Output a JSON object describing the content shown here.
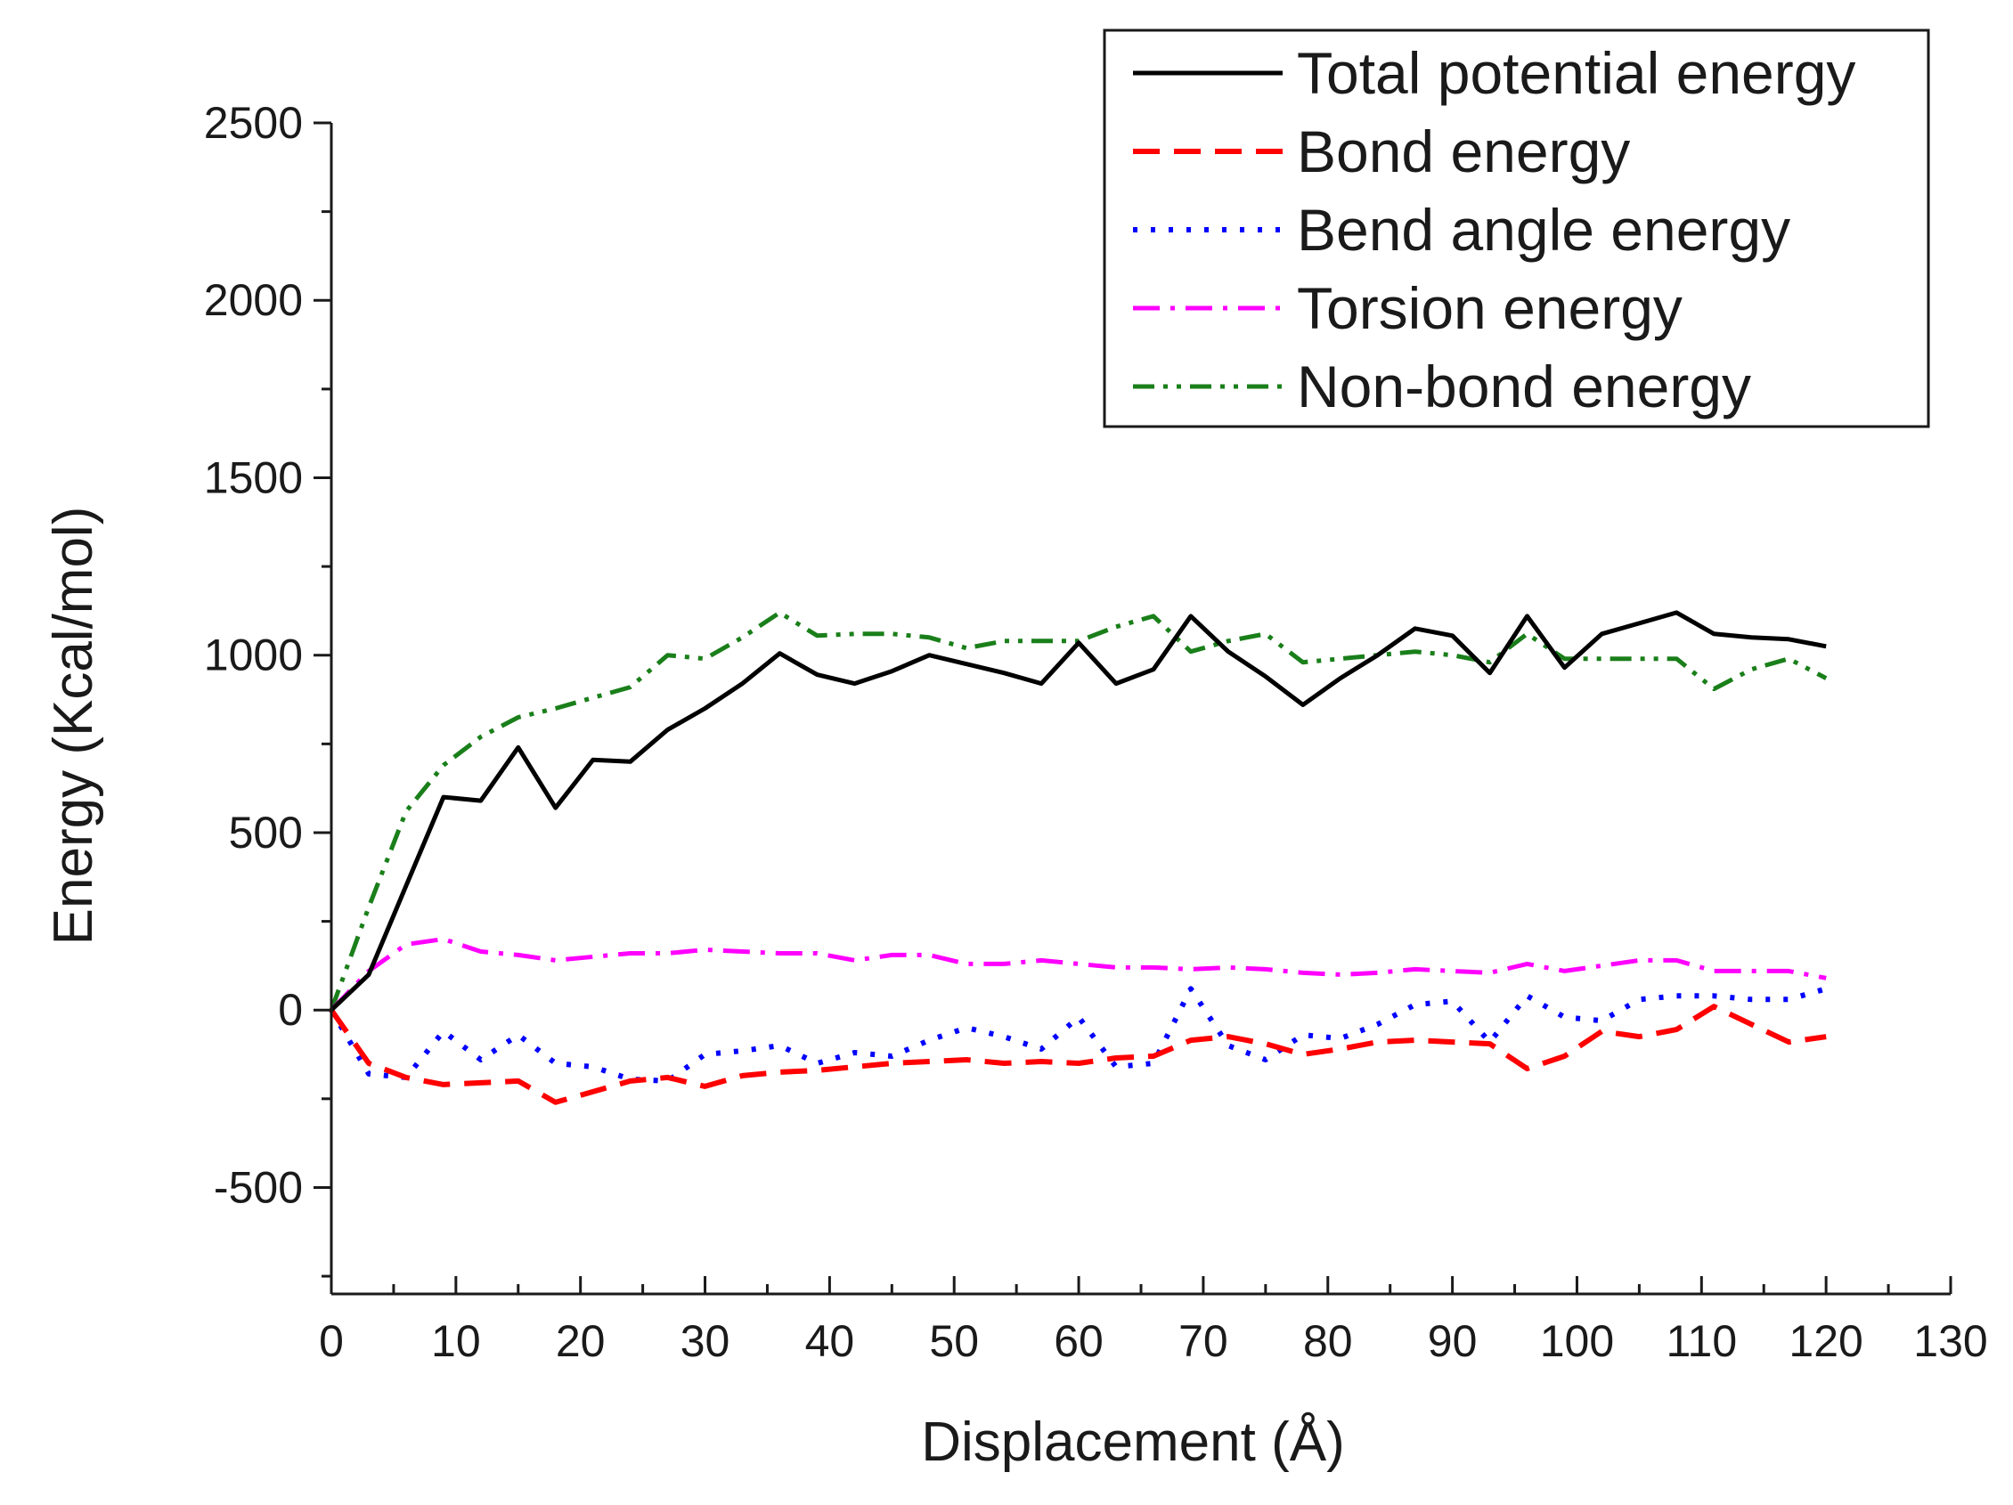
{
  "chart_data": {
    "type": "line",
    "title": "",
    "xlabel": "Displacement (Å)",
    "ylabel": "Energy (Kcal/mol)",
    "xlim": [
      0,
      130
    ],
    "ylim": [
      -800,
      2500
    ],
    "x_ticks": [
      0,
      10,
      20,
      30,
      40,
      50,
      60,
      70,
      80,
      90,
      100,
      110,
      120,
      130
    ],
    "y_ticks": [
      -500,
      0,
      500,
      1000,
      1500,
      2000,
      2500
    ],
    "x_tick_labels": [
      "0",
      "10",
      "20",
      "30",
      "40",
      "50",
      "60",
      "70",
      "80",
      "90",
      "100",
      "110",
      "120",
      "130"
    ],
    "y_tick_labels": [
      "-500",
      "0",
      "500",
      "1000",
      "1500",
      "2000",
      "2500"
    ],
    "legend_position": "top-right",
    "series": [
      {
        "name": "Total potential energy",
        "color": "#000000",
        "dash": "solid",
        "x": [
          0,
          3,
          6,
          9,
          12,
          15,
          18,
          21,
          24,
          27,
          30,
          33,
          36,
          39,
          42,
          45,
          48,
          51,
          54,
          57,
          60,
          63,
          66,
          69,
          72,
          75,
          78,
          81,
          84,
          87,
          90,
          93,
          96,
          99,
          102,
          105,
          108,
          111,
          114,
          117,
          120
        ],
        "values": [
          0,
          100,
          350,
          600,
          590,
          740,
          570,
          705,
          700,
          790,
          850,
          920,
          1005,
          945,
          920,
          955,
          1000,
          975,
          950,
          920,
          1035,
          920,
          960,
          1110,
          1010,
          940,
          860,
          935,
          1000,
          1075,
          1055,
          950,
          1110,
          965,
          1060,
          1090,
          1120,
          1060,
          1050,
          1045,
          1025
        ]
      },
      {
        "name": "Bond energy",
        "color": "#ff0000",
        "dash": "dashed",
        "x": [
          0,
          3,
          6,
          9,
          12,
          15,
          18,
          21,
          24,
          27,
          30,
          33,
          36,
          39,
          42,
          45,
          48,
          51,
          54,
          57,
          60,
          63,
          66,
          69,
          72,
          75,
          78,
          81,
          84,
          87,
          90,
          93,
          96,
          99,
          102,
          105,
          108,
          111,
          114,
          117,
          120
        ],
        "values": [
          0,
          -150,
          -190,
          -210,
          -205,
          -200,
          -260,
          -230,
          -200,
          -190,
          -215,
          -185,
          -175,
          -170,
          -160,
          -150,
          -145,
          -140,
          -150,
          -145,
          -150,
          -135,
          -130,
          -85,
          -75,
          -95,
          -125,
          -110,
          -90,
          -85,
          -90,
          -95,
          -165,
          -130,
          -60,
          -75,
          -55,
          10,
          -40,
          -90,
          -75
        ]
      },
      {
        "name": "Bend angle energy",
        "color": "#0000ff",
        "dash": "dotted",
        "x": [
          0,
          3,
          6,
          9,
          12,
          15,
          18,
          21,
          24,
          27,
          30,
          33,
          36,
          39,
          42,
          45,
          48,
          51,
          54,
          57,
          60,
          63,
          66,
          69,
          72,
          75,
          78,
          81,
          84,
          87,
          90,
          93,
          96,
          99,
          102,
          105,
          108,
          111,
          114,
          117,
          120
        ],
        "values": [
          0,
          -180,
          -190,
          -60,
          -140,
          -70,
          -150,
          -160,
          -195,
          -200,
          -125,
          -115,
          -100,
          -150,
          -120,
          -130,
          -85,
          -50,
          -75,
          -110,
          -20,
          -160,
          -150,
          60,
          -100,
          -140,
          -70,
          -80,
          -40,
          15,
          25,
          -90,
          40,
          -20,
          -30,
          30,
          40,
          40,
          30,
          30,
          60
        ]
      },
      {
        "name": "Torsion energy",
        "color": "#ff00ff",
        "dash": "dashdot",
        "x": [
          0,
          3,
          6,
          9,
          12,
          15,
          18,
          21,
          24,
          27,
          30,
          33,
          36,
          39,
          42,
          45,
          48,
          51,
          54,
          57,
          60,
          63,
          66,
          69,
          72,
          75,
          78,
          81,
          84,
          87,
          90,
          93,
          96,
          99,
          102,
          105,
          108,
          111,
          114,
          117,
          120
        ],
        "values": [
          0,
          110,
          185,
          200,
          165,
          155,
          140,
          150,
          160,
          160,
          170,
          165,
          160,
          160,
          140,
          155,
          155,
          130,
          130,
          140,
          130,
          120,
          120,
          115,
          120,
          115,
          105,
          100,
          105,
          115,
          110,
          105,
          130,
          110,
          125,
          140,
          140,
          110,
          110,
          110,
          90
        ]
      },
      {
        "name": "Non-bond energy",
        "color": "#1a7f1a",
        "dash": "dashdotdot",
        "x": [
          0,
          3,
          6,
          9,
          12,
          15,
          18,
          21,
          24,
          27,
          30,
          33,
          36,
          39,
          42,
          45,
          48,
          51,
          54,
          57,
          60,
          63,
          66,
          69,
          72,
          75,
          78,
          81,
          84,
          87,
          90,
          93,
          96,
          99,
          102,
          105,
          108,
          111,
          114,
          117,
          120
        ],
        "values": [
          0,
          290,
          560,
          690,
          770,
          825,
          850,
          880,
          910,
          1000,
          990,
          1050,
          1120,
          1055,
          1060,
          1060,
          1050,
          1020,
          1040,
          1040,
          1040,
          1080,
          1110,
          1010,
          1040,
          1060,
          980,
          990,
          1000,
          1010,
          1000,
          980,
          1060,
          990,
          990,
          990,
          990,
          905,
          960,
          990,
          935
        ]
      }
    ]
  }
}
